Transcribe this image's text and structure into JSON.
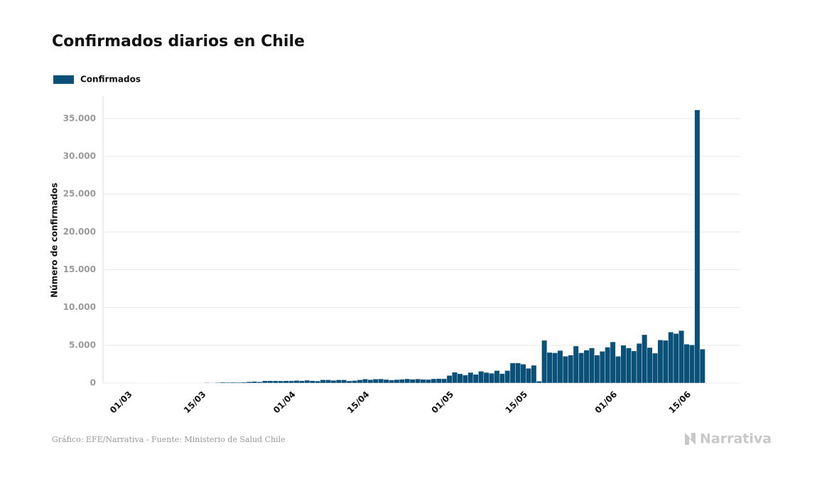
{
  "chart_data": {
    "type": "bar",
    "title": "Confirmados diarios en Chile",
    "y_label": "Número de confirmados",
    "source": "Gráfico: EFE/Narrativa - Fuente: Ministerio de Salud Chile",
    "brand": "Narrativa",
    "categories": [
      "01/03",
      null,
      null,
      null,
      null,
      null,
      null,
      null,
      null,
      null,
      null,
      null,
      null,
      null,
      "15/03",
      null,
      null,
      null,
      null,
      null,
      null,
      null,
      null,
      null,
      null,
      null,
      null,
      null,
      null,
      null,
      null,
      "01/04",
      null,
      null,
      null,
      null,
      null,
      null,
      null,
      null,
      null,
      null,
      null,
      null,
      null,
      "15/04",
      null,
      null,
      null,
      null,
      null,
      null,
      null,
      null,
      null,
      null,
      null,
      null,
      null,
      null,
      null,
      "01/05",
      null,
      null,
      null,
      null,
      null,
      null,
      null,
      null,
      null,
      null,
      null,
      null,
      null,
      "15/05",
      null,
      null,
      null,
      null,
      null,
      null,
      null,
      null,
      null,
      null,
      null,
      null,
      null,
      null,
      null,
      null,
      "01/06",
      null,
      null,
      null,
      null,
      null,
      null,
      null,
      null,
      null,
      null,
      null,
      null,
      null,
      "15/06",
      null,
      null,
      null
    ],
    "series": [
      {
        "name": "Confirmados",
        "color": "#0b5079",
        "values": [
          0,
          0,
          1,
          2,
          1,
          1,
          2,
          3,
          3,
          4,
          6,
          10,
          10,
          18,
          14,
          61,
          46,
          74,
          104,
          92,
          103,
          95,
          114,
          176,
          220,
          164,
          304,
          299,
          293,
          289,
          308,
          293,
          335,
          307,
          373,
          301,
          277,
          430,
          426,
          359,
          426,
          427,
          286,
          331,
          426,
          531,
          445,
          525,
          554,
          471,
          410,
          461,
          496,
          560,
          494,
          548,
          482,
          472,
          563,
          587,
          571,
          1000,
          1430,
          1230,
          1050,
          1400,
          1140,
          1560,
          1400,
          1300,
          1650,
          1250,
          1650,
          2650,
          2650,
          2500,
          1950,
          2350,
          250,
          5650,
          4050,
          4000,
          4300,
          3550,
          3700,
          4900,
          4000,
          4350,
          4650,
          3700,
          4200,
          4750,
          5450,
          3550,
          5000,
          4650,
          4250,
          5250,
          6400,
          4700,
          3950,
          5700,
          5650,
          6750,
          6550,
          6950,
          5150,
          5050,
          36150,
          4500
        ]
      }
    ],
    "ylim": [
      0,
      38000
    ],
    "yticks": [
      0,
      {
        "value": 5000,
        "label": "5.000"
      },
      {
        "value": 10000,
        "label": "10.000"
      },
      {
        "value": 15000,
        "label": "15.000"
      },
      {
        "value": 20000,
        "label": "20.000"
      },
      {
        "value": 25000,
        "label": "25.000"
      },
      {
        "value": 30000,
        "label": "30.000"
      },
      {
        "value": 35000,
        "label": "35.000"
      }
    ],
    "grid": true
  }
}
